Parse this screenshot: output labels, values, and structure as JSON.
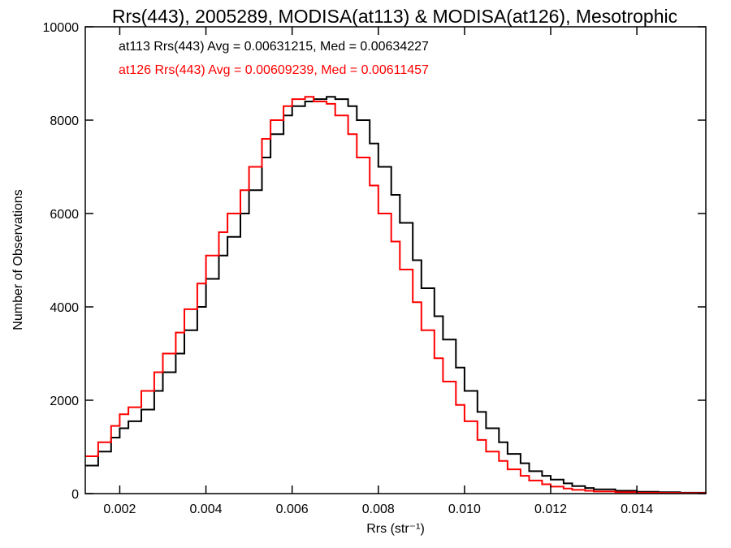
{
  "chart_data": {
    "type": "line",
    "step": true,
    "title": "Rrs(443), 2005289, MODISA(at113) & MODISA(at126), Mesotrophic",
    "xlabel": "Rrs (str⁻¹)",
    "ylabel": "Number of Observations",
    "xlim": [
      0.0012,
      0.0156
    ],
    "ylim": [
      0,
      10000
    ],
    "xticks": [
      0.002,
      0.004,
      0.006,
      0.008,
      0.01,
      0.012,
      0.014
    ],
    "xtick_labels": [
      "0.002",
      "0.004",
      "0.006",
      "0.008",
      "0.010",
      "0.012",
      "0.014"
    ],
    "yticks": [
      0,
      2000,
      4000,
      6000,
      8000,
      10000
    ],
    "ytick_labels": [
      "0",
      "2000",
      "4000",
      "6000",
      "8000",
      "10000"
    ],
    "grid": false,
    "legend_position": "top-left",
    "series": [
      {
        "name": "at113",
        "color": "#000000",
        "legend": "at113 Rrs(443) Avg = 0.00631215, Med = 0.00634227",
        "x": [
          0.0012,
          0.0015,
          0.0018,
          0.002,
          0.0022,
          0.0025,
          0.0028,
          0.003,
          0.0033,
          0.0035,
          0.0038,
          0.004,
          0.0043,
          0.0045,
          0.0048,
          0.005,
          0.0053,
          0.0055,
          0.0058,
          0.006,
          0.0063,
          0.0065,
          0.0068,
          0.007,
          0.0073,
          0.0075,
          0.0078,
          0.008,
          0.0083,
          0.0085,
          0.0088,
          0.009,
          0.0093,
          0.0095,
          0.0098,
          0.01,
          0.0103,
          0.0105,
          0.0108,
          0.011,
          0.0113,
          0.0115,
          0.0118,
          0.012,
          0.0123,
          0.0125,
          0.0128,
          0.013,
          0.0135,
          0.014,
          0.0145,
          0.015,
          0.0156
        ],
        "y": [
          600,
          900,
          1200,
          1400,
          1550,
          1800,
          2200,
          2600,
          3000,
          3500,
          4000,
          4600,
          5100,
          5500,
          6000,
          6500,
          7200,
          7700,
          8100,
          8300,
          8400,
          8450,
          8500,
          8450,
          8300,
          8000,
          7500,
          7000,
          6400,
          5800,
          5000,
          4400,
          3800,
          3300,
          2700,
          2200,
          1750,
          1400,
          1100,
          850,
          650,
          480,
          380,
          300,
          220,
          160,
          120,
          90,
          60,
          40,
          30,
          20,
          10
        ]
      },
      {
        "name": "at126",
        "color": "#ff0000",
        "legend": "at126 Rrs(443) Avg = 0.00609239, Med = 0.00611457",
        "x": [
          0.0012,
          0.0015,
          0.0018,
          0.002,
          0.0022,
          0.0025,
          0.0028,
          0.003,
          0.0033,
          0.0035,
          0.0038,
          0.004,
          0.0043,
          0.0045,
          0.0048,
          0.005,
          0.0053,
          0.0055,
          0.0058,
          0.006,
          0.0063,
          0.0065,
          0.0068,
          0.007,
          0.0073,
          0.0075,
          0.0078,
          0.008,
          0.0083,
          0.0085,
          0.0088,
          0.009,
          0.0093,
          0.0095,
          0.0098,
          0.01,
          0.0103,
          0.0105,
          0.0108,
          0.011,
          0.0113,
          0.0115,
          0.0118,
          0.012,
          0.0123,
          0.0125,
          0.0128,
          0.013,
          0.0135,
          0.014,
          0.0145,
          0.015,
          0.0156
        ],
        "y": [
          800,
          1100,
          1450,
          1700,
          1850,
          2200,
          2600,
          3000,
          3450,
          3950,
          4500,
          5100,
          5600,
          6000,
          6500,
          7000,
          7600,
          8000,
          8300,
          8450,
          8500,
          8400,
          8350,
          8100,
          7700,
          7200,
          6600,
          6000,
          5400,
          4800,
          4100,
          3500,
          2900,
          2400,
          1900,
          1550,
          1150,
          900,
          700,
          520,
          380,
          280,
          200,
          150,
          110,
          80,
          60,
          45,
          30,
          20,
          15,
          10,
          5
        ]
      }
    ]
  }
}
